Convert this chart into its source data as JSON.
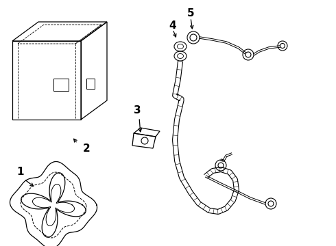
{
  "background_color": "#ffffff",
  "line_color": "#000000",
  "label_color": "#000000",
  "figsize": [
    4.9,
    3.6
  ],
  "dpi": 100
}
